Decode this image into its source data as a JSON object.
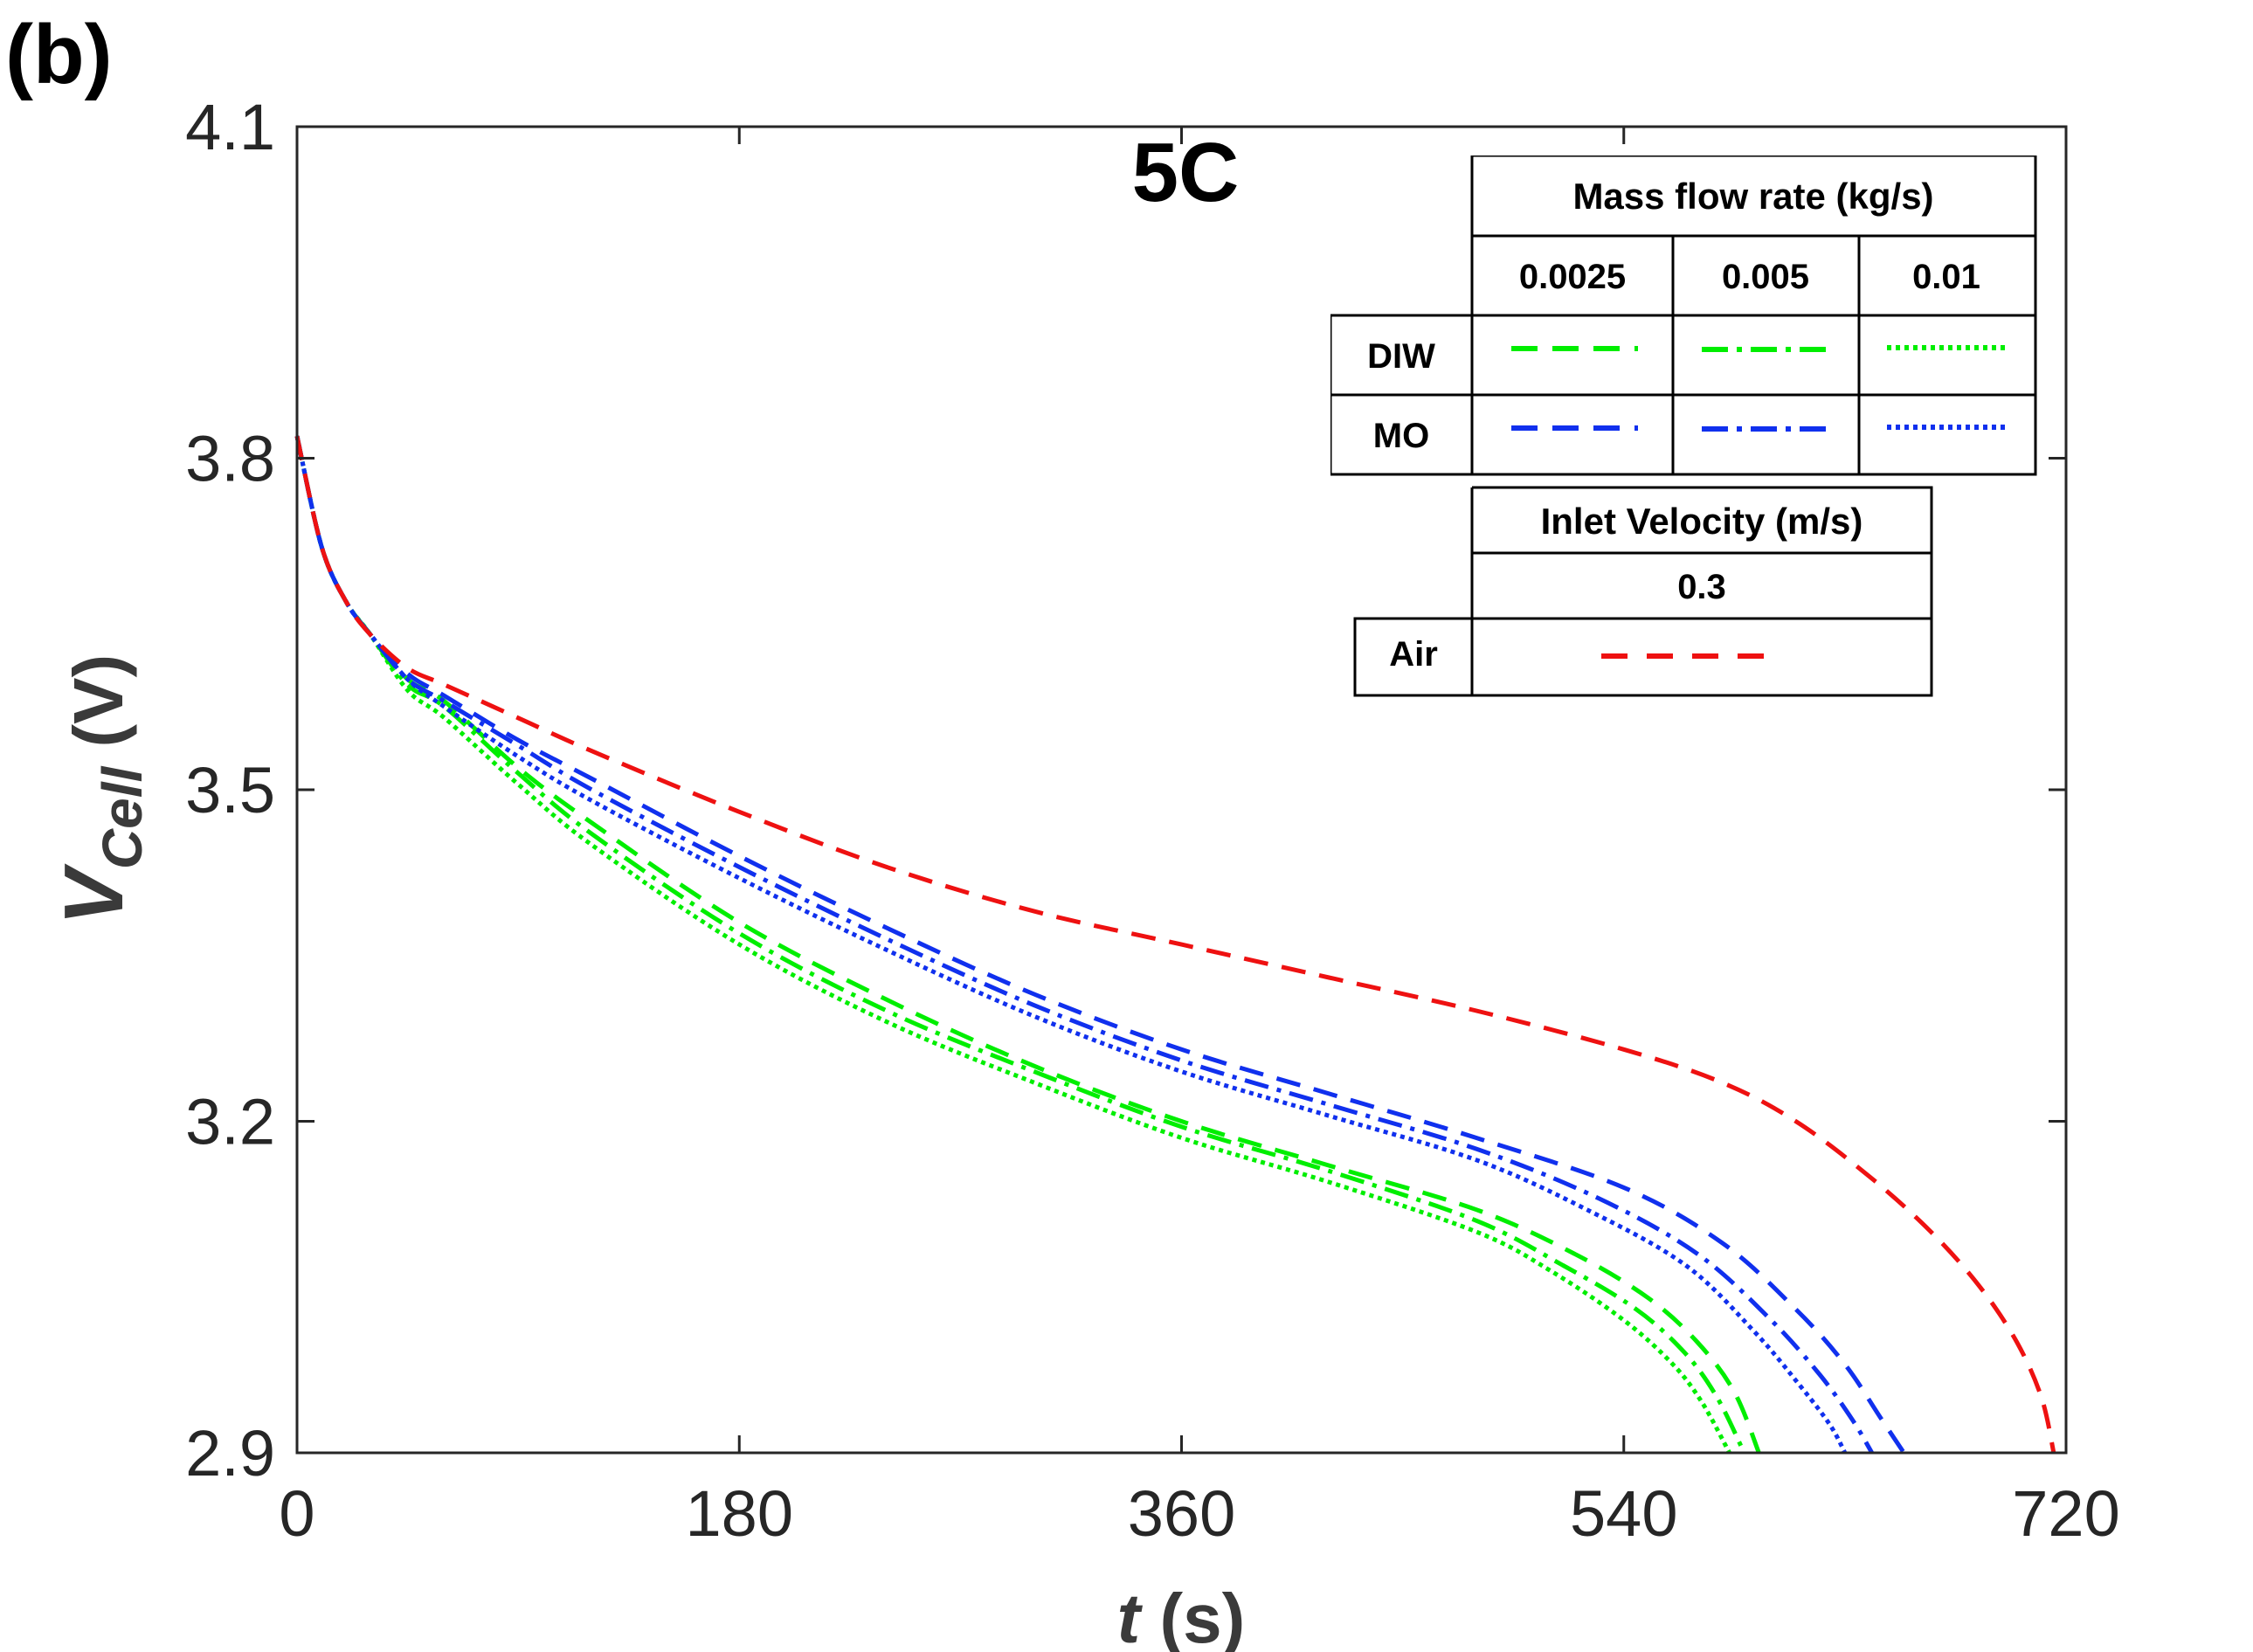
{
  "panel_label": "(b)",
  "chart_data": {
    "type": "line",
    "title": "5C",
    "xlabel": "t (s)",
    "xlabel_var": "t",
    "xlabel_unit": " (s)",
    "ylabel_base": "V",
    "ylabel_sub": "Cell",
    "ylabel_unit": " (V)",
    "xlim": [
      0,
      720
    ],
    "ylim": [
      2.9,
      4.1
    ],
    "xticks": [
      0,
      180,
      360,
      540,
      720
    ],
    "xtick_labels": [
      "0",
      "180",
      "360",
      "540",
      "720"
    ],
    "yticks": [
      2.9,
      3.2,
      3.5,
      3.8,
      4.1
    ],
    "ytick_labels": [
      "2.9",
      "3.2",
      "3.5",
      "3.8",
      "4.1"
    ],
    "series": [
      {
        "name": "DIW 0.0025",
        "fluid": "DIW",
        "flow": "0.0025",
        "color": "#00ee00",
        "style": "dashed",
        "x": [
          0,
          10,
          20,
          30,
          45,
          60,
          90,
          120,
          180,
          240,
          300,
          360,
          420,
          480,
          520,
          550,
          570,
          585,
          595
        ],
        "y": [
          3.82,
          3.72,
          3.67,
          3.64,
          3.6,
          3.58,
          3.52,
          3.47,
          3.38,
          3.31,
          3.25,
          3.2,
          3.16,
          3.12,
          3.08,
          3.04,
          3.0,
          2.955,
          2.9
        ]
      },
      {
        "name": "DIW 0.005",
        "fluid": "DIW",
        "flow": "0.005",
        "color": "#00ee00",
        "style": "dashdot",
        "x": [
          0,
          10,
          20,
          30,
          45,
          60,
          90,
          120,
          180,
          240,
          300,
          360,
          420,
          480,
          515,
          545,
          565,
          578,
          589
        ],
        "y": [
          3.82,
          3.72,
          3.67,
          3.64,
          3.595,
          3.575,
          3.515,
          3.46,
          3.37,
          3.3,
          3.245,
          3.195,
          3.155,
          3.11,
          3.07,
          3.03,
          2.99,
          2.95,
          2.9
        ]
      },
      {
        "name": "DIW 0.01",
        "fluid": "DIW",
        "flow": "0.01",
        "color": "#00ee00",
        "style": "dotted",
        "x": [
          0,
          10,
          20,
          30,
          45,
          60,
          90,
          120,
          180,
          240,
          300,
          360,
          420,
          480,
          510,
          540,
          560,
          572,
          583
        ],
        "y": [
          3.82,
          3.72,
          3.67,
          3.64,
          3.59,
          3.565,
          3.505,
          3.45,
          3.36,
          3.29,
          3.235,
          3.185,
          3.145,
          3.1,
          3.065,
          3.02,
          2.98,
          2.945,
          2.9
        ]
      },
      {
        "name": "MO 0.0025",
        "fluid": "MO",
        "flow": "0.0025",
        "color": "#1030ee",
        "style": "dashed",
        "x": [
          0,
          10,
          20,
          30,
          45,
          60,
          90,
          120,
          180,
          240,
          300,
          360,
          420,
          480,
          540,
          580,
          610,
          630,
          645,
          654
        ],
        "y": [
          3.82,
          3.72,
          3.67,
          3.64,
          3.605,
          3.585,
          3.545,
          3.51,
          3.44,
          3.375,
          3.315,
          3.265,
          3.225,
          3.185,
          3.14,
          3.09,
          3.03,
          2.98,
          2.93,
          2.9
        ]
      },
      {
        "name": "MO 0.005",
        "fluid": "MO",
        "flow": "0.005",
        "color": "#1030ee",
        "style": "dashdot",
        "x": [
          0,
          10,
          20,
          30,
          45,
          60,
          90,
          120,
          180,
          240,
          300,
          360,
          420,
          480,
          530,
          570,
          600,
          620,
          633,
          641
        ],
        "y": [
          3.82,
          3.72,
          3.67,
          3.64,
          3.6,
          3.58,
          3.54,
          3.5,
          3.43,
          3.365,
          3.305,
          3.255,
          3.215,
          3.175,
          3.13,
          3.08,
          3.02,
          2.97,
          2.93,
          2.9
        ]
      },
      {
        "name": "MO 0.01",
        "fluid": "MO",
        "flow": "0.01",
        "color": "#1030ee",
        "style": "dotted",
        "x": [
          0,
          10,
          20,
          30,
          45,
          60,
          90,
          120,
          180,
          240,
          300,
          360,
          420,
          480,
          525,
          565,
          593,
          612,
          624,
          630
        ],
        "y": [
          3.82,
          3.72,
          3.67,
          3.64,
          3.6,
          3.575,
          3.53,
          3.49,
          3.42,
          3.355,
          3.295,
          3.245,
          3.205,
          3.165,
          3.12,
          3.07,
          3.01,
          2.96,
          2.925,
          2.9
        ]
      },
      {
        "name": "Air 0.3",
        "fluid": "Air",
        "flow": "0.3",
        "color": "#ee1111",
        "style": "dashed",
        "x": [
          0,
          10,
          20,
          30,
          45,
          60,
          90,
          120,
          180,
          240,
          300,
          360,
          420,
          480,
          540,
          580,
          610,
          640,
          665,
          685,
          700,
          710,
          715
        ],
        "y": [
          3.82,
          3.72,
          3.67,
          3.64,
          3.61,
          3.595,
          3.565,
          3.535,
          3.48,
          3.43,
          3.39,
          3.36,
          3.33,
          3.3,
          3.265,
          3.235,
          3.2,
          3.15,
          3.1,
          3.05,
          3.0,
          2.95,
          2.9
        ]
      }
    ]
  },
  "legend": {
    "header": "Mass flow rate (kg/s)",
    "columns": [
      "0.0025",
      "0.005",
      "0.01"
    ],
    "rows": [
      "DIW",
      "MO"
    ],
    "air_header": "Inlet Velocity (m/s)",
    "air_value": "0.3",
    "air_row": "Air"
  }
}
